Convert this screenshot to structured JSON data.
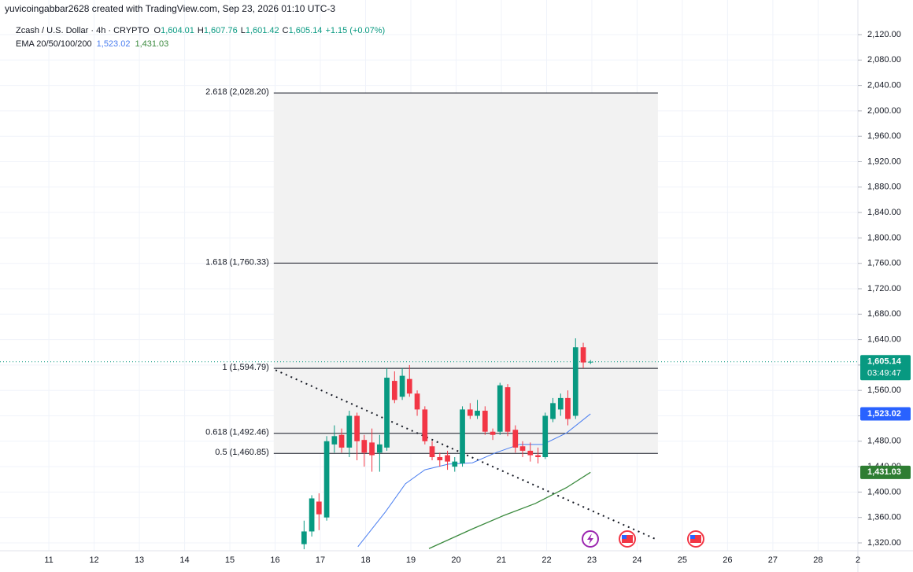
{
  "chart_data": {
    "type": "candlestick",
    "header": "yuvicoingabbar2628 created with TradingView.com, Sep 23, 2026 01:10 UTC-3",
    "title": "Zcash / U.S. Dollar · 4h · CRYPTO",
    "ohlc_legend": [
      {
        "key": "O",
        "value": 1604.01,
        "label": "1,604.01"
      },
      {
        "key": "H",
        "value": 1607.76,
        "label": "1,607.76"
      },
      {
        "key": "L",
        "value": 1601.42,
        "label": "1,601.42"
      },
      {
        "key": "C",
        "value": 1605.14,
        "label": "1,605.14"
      }
    ],
    "change": {
      "value": 1.15,
      "label": "+1.15"
    },
    "change_pct": {
      "value": 0.07,
      "label": "(+0.07%)"
    },
    "up_color": "#089981",
    "down_color": "#f23645",
    "xlim": [
      9.92,
      28.88
    ],
    "ylim": [
      1307.6,
      2174.5
    ],
    "grid": true,
    "xticks": [
      11,
      12,
      13,
      14,
      15,
      16,
      17,
      18,
      19,
      20,
      21,
      22,
      23,
      24,
      25,
      26,
      27,
      28,
      {
        "value": 28.88,
        "label": "2"
      }
    ],
    "yticks": [
      {
        "value": 1320,
        "label": "1,320.00"
      },
      {
        "value": 1360,
        "label": "1,360.00"
      },
      {
        "value": 1400,
        "label": "1,400.00"
      },
      {
        "value": 1440,
        "label": "1,440.00"
      },
      {
        "value": 1480,
        "label": "1,480.00"
      },
      {
        "value": 1520,
        "label": "1,520.00"
      },
      {
        "value": 1560,
        "label": "1,560.00"
      },
      {
        "value": 1600,
        "label": "1,600.00"
      },
      {
        "value": 1640,
        "label": "1,640.00"
      },
      {
        "value": 1680,
        "label": "1,680.00"
      },
      {
        "value": 1720,
        "label": "1,720.00"
      },
      {
        "value": 1760,
        "label": "1,760.00"
      },
      {
        "value": 1800,
        "label": "1,800.00"
      },
      {
        "value": 1840,
        "label": "1,840.00"
      },
      {
        "value": 1880,
        "label": "1,880.00"
      },
      {
        "value": 1920,
        "label": "1,920.00"
      },
      {
        "value": 1960,
        "label": "1,960.00"
      },
      {
        "value": 2000,
        "label": "2,000.00"
      },
      {
        "value": 2040,
        "label": "2,040.00"
      },
      {
        "value": 2080,
        "label": "2,080.00"
      },
      {
        "value": 2120,
        "label": "2,120.00"
      }
    ],
    "x": [
      16.64,
      16.81,
      16.97,
      17.14,
      17.31,
      17.47,
      17.64,
      17.81,
      17.97,
      18.14,
      18.31,
      18.47,
      18.64,
      18.81,
      18.97,
      19.14,
      19.31,
      19.47,
      19.64,
      19.81,
      19.97,
      20.14,
      20.31,
      20.47,
      20.64,
      20.81,
      20.97,
      21.14,
      21.31,
      21.47,
      21.64,
      21.81,
      21.97,
      22.14,
      22.31,
      22.47,
      22.64,
      22.81,
      22.97
    ],
    "open": [
      1318,
      1338,
      1385,
      1360,
      1475,
      1490,
      1470,
      1520,
      1482,
      1478,
      1462,
      1470,
      1575,
      1550,
      1578,
      1555,
      1530,
      1472,
      1455,
      1458,
      1440,
      1445,
      1530,
      1520,
      1528,
      1495,
      1495,
      1565,
      1498,
      1472,
      1465,
      1458,
      1455,
      1515,
      1530,
      1548,
      1520,
      1628,
      1604.01
    ],
    "high": [
      1355,
      1395,
      1398,
      1488,
      1505,
      1500,
      1528,
      1525,
      1490,
      1500,
      1490,
      1595,
      1590,
      1595,
      1600,
      1560,
      1535,
      1480,
      1462,
      1465,
      1455,
      1535,
      1540,
      1545,
      1535,
      1500,
      1572,
      1570,
      1505,
      1480,
      1478,
      1470,
      1525,
      1548,
      1555,
      1560,
      1642,
      1635,
      1607.76
    ],
    "low": [
      1310,
      1330,
      1340,
      1355,
      1462,
      1462,
      1455,
      1450,
      1440,
      1432,
      1432,
      1465,
      1540,
      1545,
      1550,
      1520,
      1475,
      1450,
      1440,
      1435,
      1432,
      1440,
      1515,
      1515,
      1490,
      1482,
      1490,
      1488,
      1462,
      1455,
      1448,
      1445,
      1452,
      1510,
      1520,
      1505,
      1515,
      1595,
      1601.42
    ],
    "close": [
      1338,
      1390,
      1365,
      1480,
      1488,
      1470,
      1520,
      1480,
      1462,
      1458,
      1475,
      1580,
      1545,
      1583,
      1555,
      1530,
      1480,
      1455,
      1450,
      1448,
      1448,
      1530,
      1520,
      1528,
      1495,
      1490,
      1568,
      1495,
      1470,
      1465,
      1458,
      1455,
      1520,
      1540,
      1548,
      1515,
      1628,
      1604,
      1605.14
    ],
    "ema": {
      "name": "EMA 20/50/100/200",
      "series": [
        {
          "color": "#4a7ef0",
          "x": [
            17.83,
            18.44,
            18.88,
            19.31,
            19.83,
            20.36,
            20.88,
            21.4,
            21.92,
            22.44,
            22.97
          ],
          "values": [
            1314,
            1369,
            1413,
            1435,
            1444,
            1446,
            1462,
            1475,
            1475,
            1493,
            1523.02
          ],
          "legend_value": {
            "value": 1523.02,
            "label": "1,523.02"
          }
        },
        {
          "color": "#3b8a3e",
          "x": [
            19.4,
            20.36,
            21.05,
            21.75,
            22.44,
            22.97
          ],
          "values": [
            1311,
            1342,
            1363,
            1382,
            1407,
            1431.03
          ],
          "legend_value": {
            "value": 1431.03,
            "label": "1,431.03"
          }
        }
      ]
    },
    "fib": {
      "xlim": [
        15.97,
        24.46
      ],
      "levels": [
        {
          "value": 2028.2,
          "label": "2.618 (2,028.20)"
        },
        {
          "value": 1760.33,
          "label": "1.618 (1,760.33)"
        },
        {
          "value": 1594.79,
          "label": "1 (1,594.79)"
        },
        {
          "value": 1492.46,
          "label": "0.618 (1,492.46)"
        },
        {
          "value": 1460.85,
          "label": "0.5 (1,460.85)"
        }
      ]
    },
    "trendline": {
      "x": [
        16.01,
        24.44
      ],
      "y": [
        1592,
        1325
      ]
    },
    "price_labels": [
      {
        "value": 1605.14,
        "label": "1,605.14",
        "countdown": "03:49:47",
        "color": "#089981"
      },
      {
        "value": 1523.02,
        "label": "1,523.02",
        "color": "#2962ff"
      },
      {
        "value": 1431.03,
        "label": "1,431.03",
        "color": "#2e7d32"
      }
    ]
  }
}
